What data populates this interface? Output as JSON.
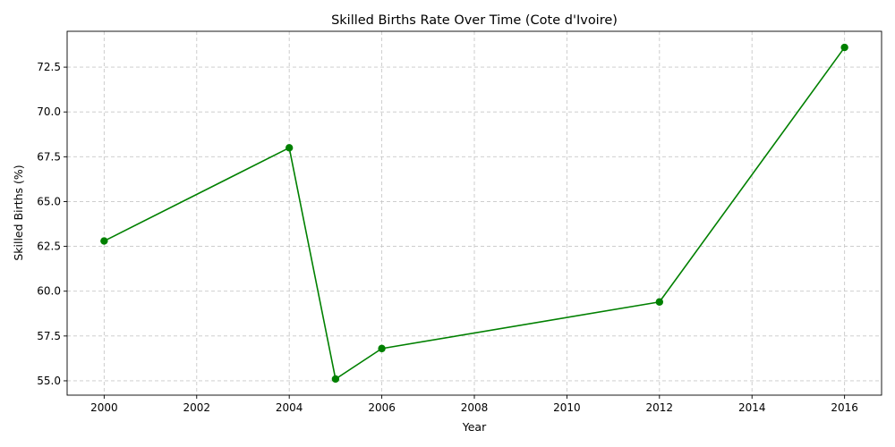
{
  "chart_data": {
    "type": "line",
    "title": "Skilled Births Rate Over Time (Cote d'Ivoire)",
    "xlabel": "Year",
    "ylabel": "Skilled Births (%)",
    "x_ticks": [
      "2000",
      "2002",
      "2004",
      "2006",
      "2008",
      "2010",
      "2012",
      "2014",
      "2016"
    ],
    "y_ticks": [
      "55.0",
      "57.5",
      "60.0",
      "62.5",
      "65.0",
      "67.5",
      "70.0",
      "72.5"
    ],
    "xlim": [
      1999.2,
      2016.8
    ],
    "ylim": [
      54.2,
      74.5
    ],
    "grid": true,
    "series": [
      {
        "color": "#008000",
        "marker": "circle",
        "points": [
          {
            "x": 2000,
            "y": 62.8
          },
          {
            "x": 2004,
            "y": 68.0
          },
          {
            "x": 2005,
            "y": 55.1
          },
          {
            "x": 2006,
            "y": 56.8
          },
          {
            "x": 2012,
            "y": 59.4
          },
          {
            "x": 2016,
            "y": 73.6
          }
        ]
      }
    ]
  }
}
